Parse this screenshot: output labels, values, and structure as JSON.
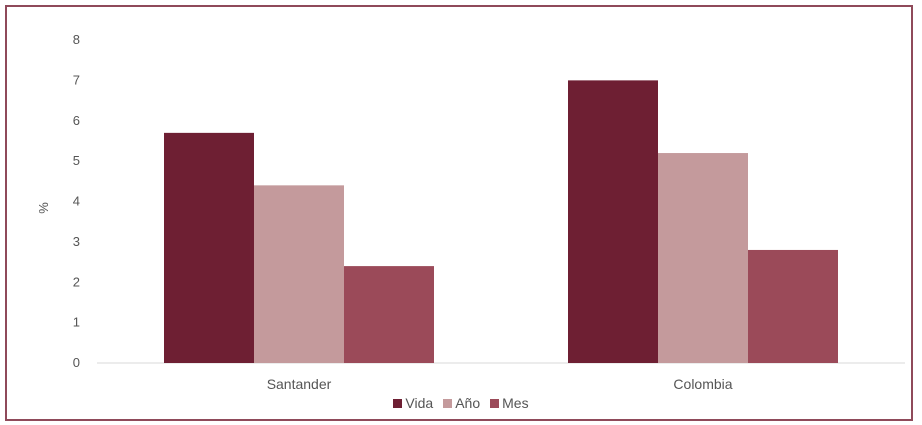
{
  "chart_data": {
    "type": "bar",
    "title": "",
    "xlabel": "",
    "ylabel": "%",
    "ylim": [
      0,
      8
    ],
    "yticks": [
      0,
      1,
      2,
      3,
      4,
      5,
      6,
      7,
      8
    ],
    "grid": false,
    "legend_position": "bottom",
    "categories": [
      "Santander",
      "Colombia"
    ],
    "series": [
      {
        "name": "Vida",
        "values": [
          5.7,
          7.0
        ],
        "color": "#6e1f33"
      },
      {
        "name": "Año",
        "values": [
          4.4,
          5.2
        ],
        "color": "#c49a9c"
      },
      {
        "name": "Mes",
        "values": [
          2.4,
          2.8
        ],
        "color": "#9b4a59"
      }
    ]
  }
}
